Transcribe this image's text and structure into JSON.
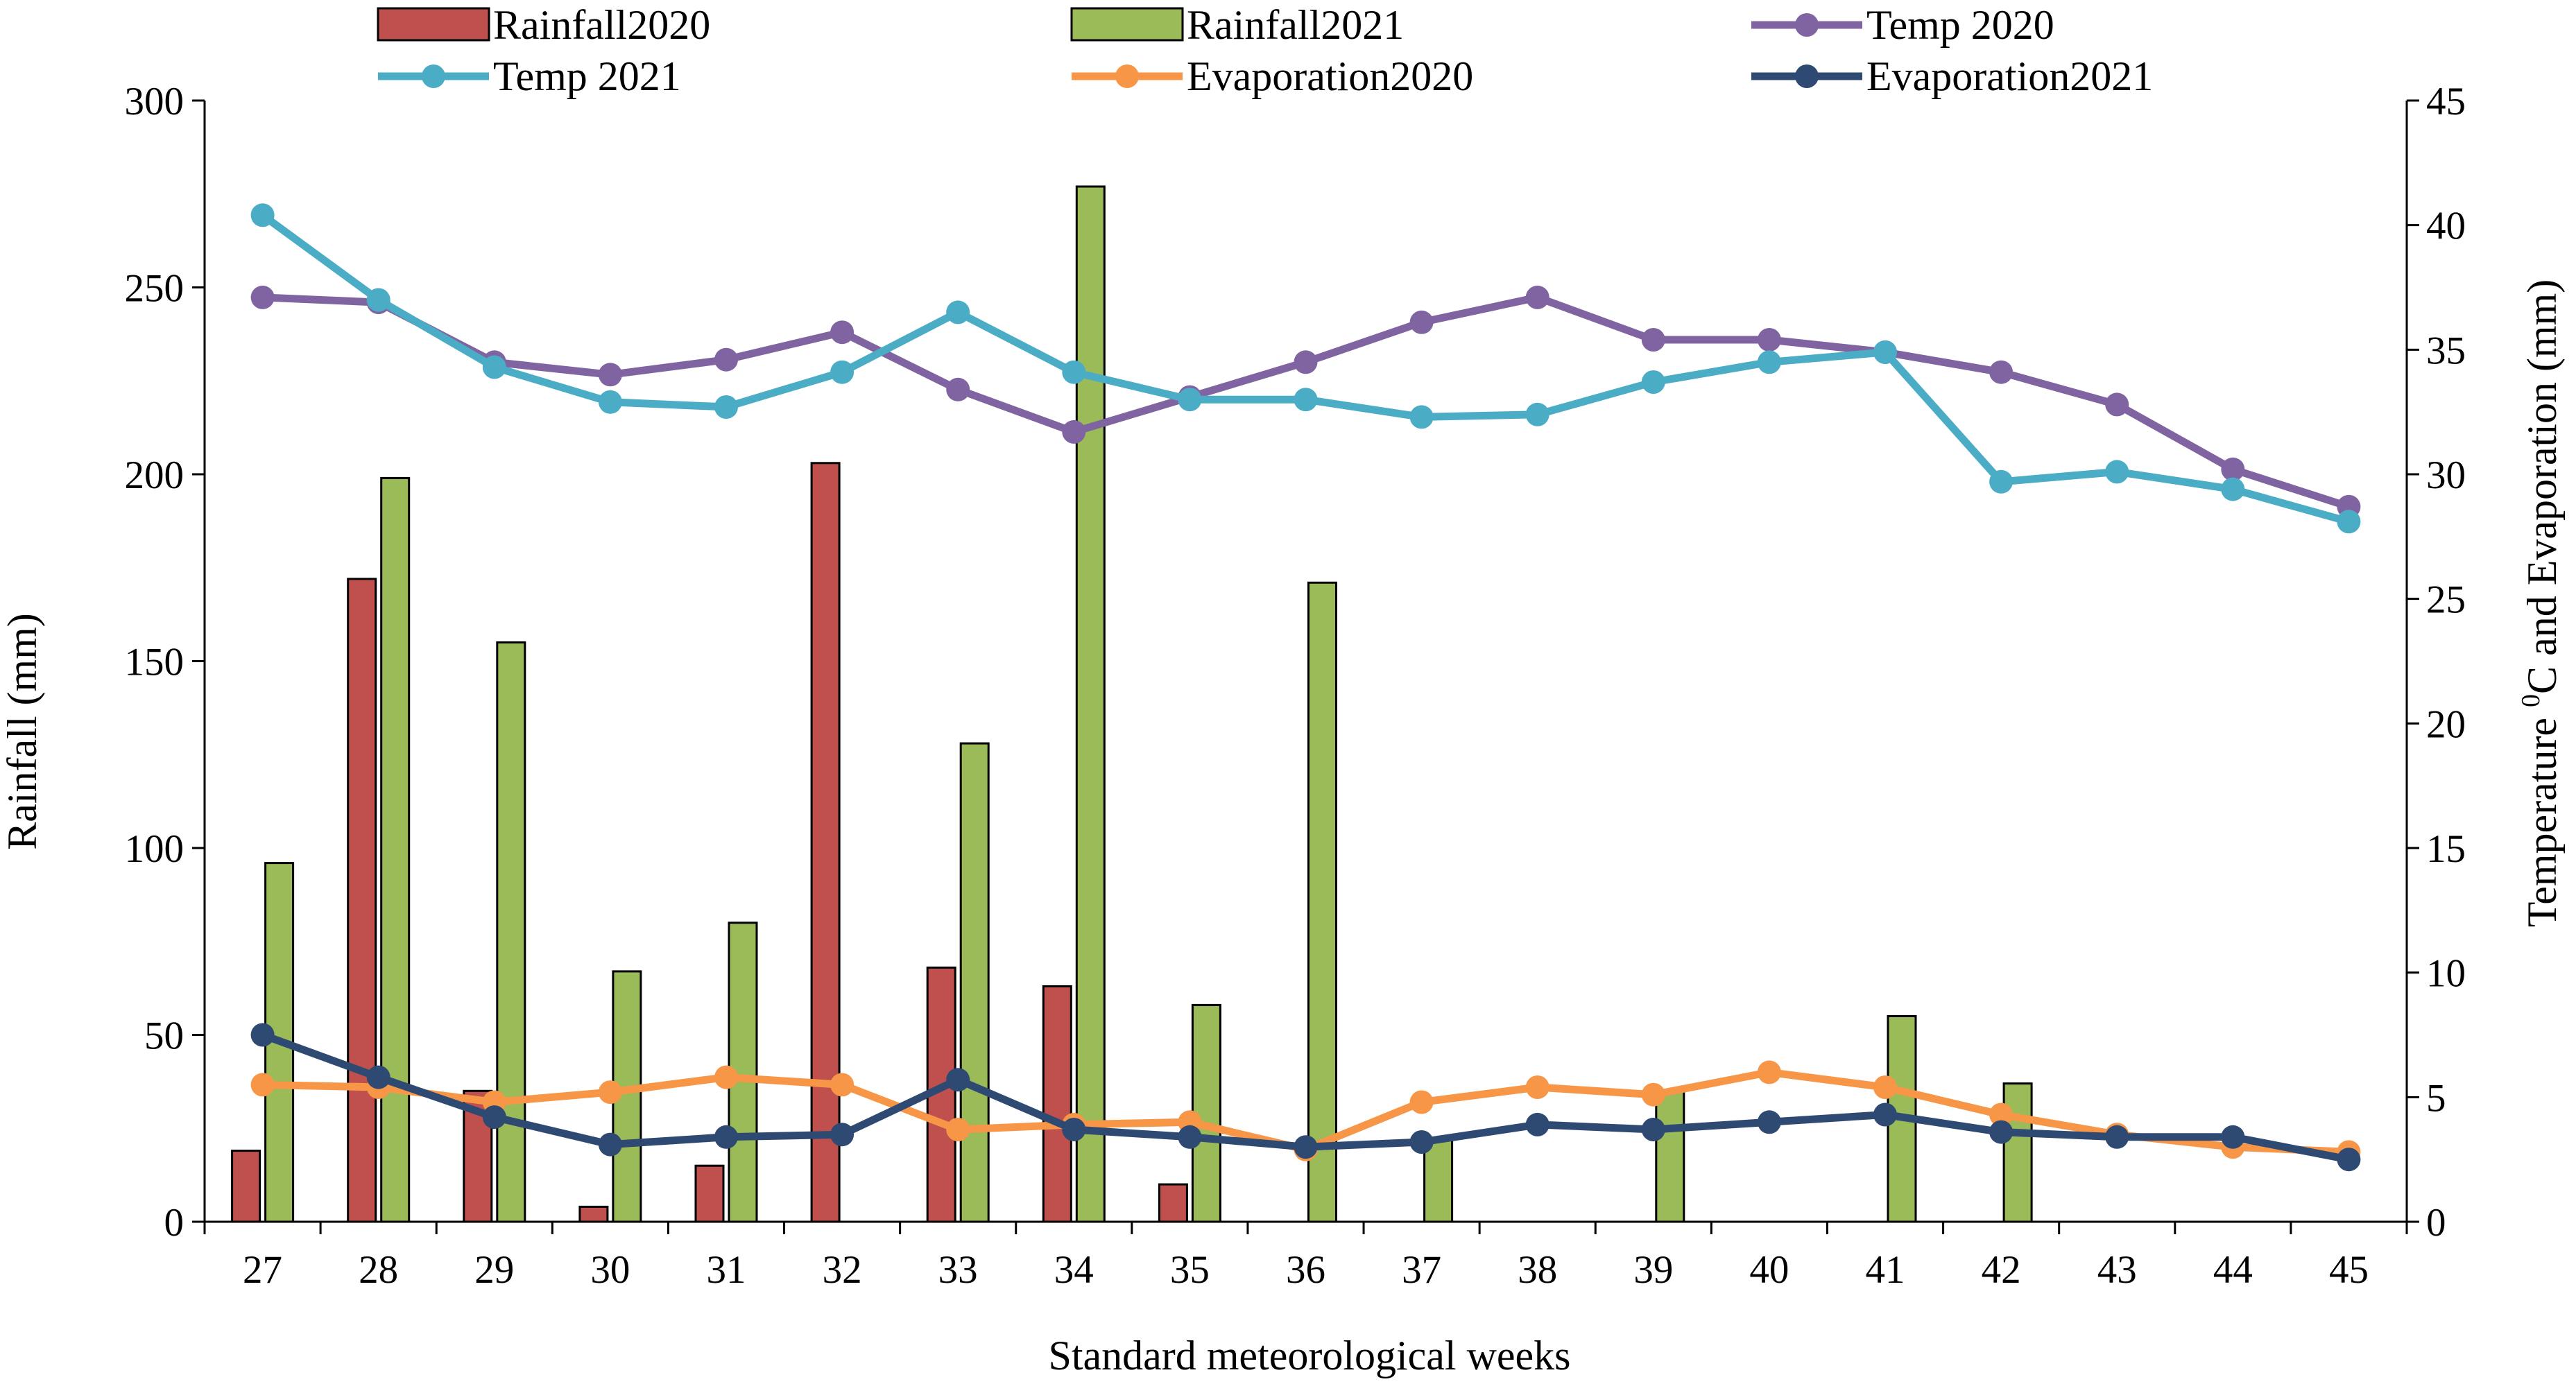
{
  "chart_data": {
    "type": "bar+line",
    "title": "",
    "xlabel": "Standard meteorological weeks",
    "ylabel_left": "Rainfall (mm)",
    "ylabel_right": "Temperature 0C  and Evaporation (mm)",
    "ylabel_right_parts": {
      "before": "Temperature ",
      "superscript": "0",
      "after": "C  and Evaporation (mm)"
    },
    "ylim_left": [
      0,
      300
    ],
    "ylim_right": [
      0,
      45
    ],
    "yticks_left": [
      "0",
      "50",
      "100",
      "150",
      "200",
      "250",
      "300"
    ],
    "yticks_right": [
      "0",
      "5",
      "10",
      "15",
      "20",
      "25",
      "30",
      "35",
      "40",
      "45"
    ],
    "categories": [
      "27",
      "28",
      "29",
      "30",
      "31",
      "32",
      "33",
      "34",
      "35",
      "36",
      "37",
      "38",
      "39",
      "40",
      "41",
      "42",
      "43",
      "44",
      "45"
    ],
    "bar_series": [
      {
        "name": "Rainfall2020",
        "color": "#c0504d",
        "axis": "left",
        "values": [
          19,
          172,
          35,
          4,
          15,
          203,
          68,
          63,
          10,
          0,
          0,
          0,
          0,
          0,
          0,
          0,
          0,
          0,
          0
        ]
      },
      {
        "name": "Rainfall2021",
        "color": "#9bbb59",
        "axis": "left",
        "values": [
          96,
          199,
          155,
          67,
          80,
          0,
          128,
          277,
          58,
          171,
          22,
          0,
          35,
          0,
          55,
          37,
          0,
          0,
          0
        ]
      }
    ],
    "line_series": [
      {
        "name": "Temp 2020",
        "color": "#8064a2",
        "axis": "right",
        "values": [
          37.1,
          36.9,
          34.5,
          34.0,
          34.6,
          35.7,
          33.4,
          31.7,
          33.1,
          34.5,
          36.1,
          37.1,
          35.4,
          35.4,
          34.9,
          34.1,
          32.8,
          30.2,
          28.7
        ]
      },
      {
        "name": "Temp 2021",
        "color": "#4bacc6",
        "axis": "right",
        "values": [
          40.4,
          37.0,
          34.3,
          32.9,
          32.7,
          34.1,
          36.5,
          34.1,
          33.0,
          33.0,
          32.3,
          32.4,
          33.7,
          34.5,
          34.9,
          29.7,
          30.1,
          29.4,
          28.1
        ]
      },
      {
        "name": "Evaporation2020",
        "color": "#f79646",
        "axis": "right",
        "values": [
          5.5,
          5.4,
          4.8,
          5.2,
          5.8,
          5.5,
          3.7,
          3.9,
          4.0,
          2.9,
          4.8,
          5.4,
          5.1,
          6.0,
          5.4,
          4.3,
          3.5,
          3.0,
          2.8
        ]
      },
      {
        "name": "Evaporation2021",
        "color": "#2e4a72",
        "axis": "right",
        "values": [
          7.5,
          5.8,
          4.2,
          3.1,
          3.4,
          3.5,
          5.7,
          3.7,
          3.4,
          3.0,
          3.2,
          3.9,
          3.7,
          4.0,
          4.3,
          3.6,
          3.4,
          3.4,
          2.5
        ]
      }
    ],
    "legend": {
      "placement": "top",
      "entries": [
        {
          "name": "Rainfall2020",
          "kind": "bar",
          "color": "#c0504d"
        },
        {
          "name": "Rainfall2021",
          "kind": "bar",
          "color": "#9bbb59"
        },
        {
          "name": "Temp 2020",
          "kind": "line",
          "color": "#8064a2"
        },
        {
          "name": "Temp 2021",
          "kind": "line",
          "color": "#4bacc6"
        },
        {
          "name": "Evaporation2020",
          "kind": "line",
          "color": "#f79646"
        },
        {
          "name": "Evaporation2021",
          "kind": "line",
          "color": "#2e4a72"
        }
      ]
    },
    "grid": false
  }
}
